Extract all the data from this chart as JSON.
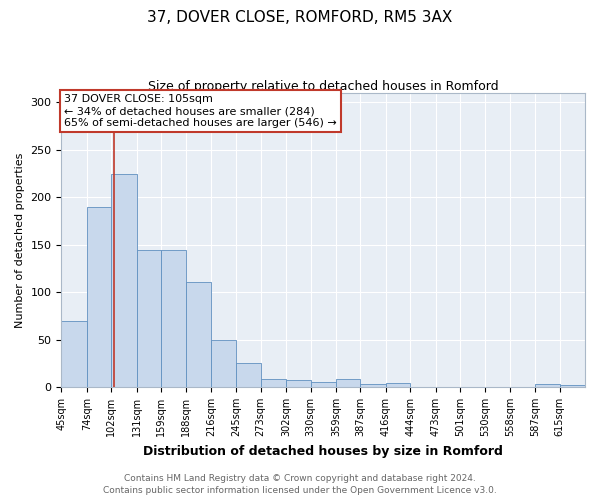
{
  "title": "37, DOVER CLOSE, ROMFORD, RM5 3AX",
  "subtitle": "Size of property relative to detached houses in Romford",
  "xlabel": "Distribution of detached houses by size in Romford",
  "ylabel": "Number of detached properties",
  "bin_labels": [
    "45sqm",
    "74sqm",
    "102sqm",
    "131sqm",
    "159sqm",
    "188sqm",
    "216sqm",
    "245sqm",
    "273sqm",
    "302sqm",
    "330sqm",
    "359sqm",
    "387sqm",
    "416sqm",
    "444sqm",
    "473sqm",
    "501sqm",
    "530sqm",
    "558sqm",
    "587sqm",
    "615sqm"
  ],
  "bin_edges": [
    45,
    74,
    102,
    131,
    159,
    188,
    216,
    245,
    273,
    302,
    330,
    359,
    387,
    416,
    444,
    473,
    501,
    530,
    558,
    587,
    615,
    644
  ],
  "bar_heights": [
    70,
    190,
    225,
    144,
    144,
    111,
    50,
    25,
    9,
    7,
    5,
    9,
    3,
    4,
    0,
    0,
    0,
    0,
    0,
    3,
    2
  ],
  "bar_color": "#c8d8ec",
  "bar_edge_color": "#6090c0",
  "property_size": 105,
  "vline_color": "#c0392b",
  "annotation_line1": "37 DOVER CLOSE: 105sqm",
  "annotation_line2": "← 34% of detached houses are smaller (284)",
  "annotation_line3": "65% of semi-detached houses are larger (546) →",
  "annotation_box_color": "#ffffff",
  "annotation_border_color": "#c0392b",
  "ylim": [
    0,
    310
  ],
  "yticks": [
    0,
    50,
    100,
    150,
    200,
    250,
    300
  ],
  "footer_line1": "Contains HM Land Registry data © Crown copyright and database right 2024.",
  "footer_line2": "Contains public sector information licensed under the Open Government Licence v3.0.",
  "background_color": "#ffffff",
  "plot_bg_color": "#e8eef5",
  "grid_color": "#ffffff",
  "title_fontsize": 11,
  "subtitle_fontsize": 9,
  "xlabel_fontsize": 9,
  "ylabel_fontsize": 8,
  "tick_fontsize": 7,
  "annotation_fontsize": 8,
  "footer_fontsize": 6.5
}
